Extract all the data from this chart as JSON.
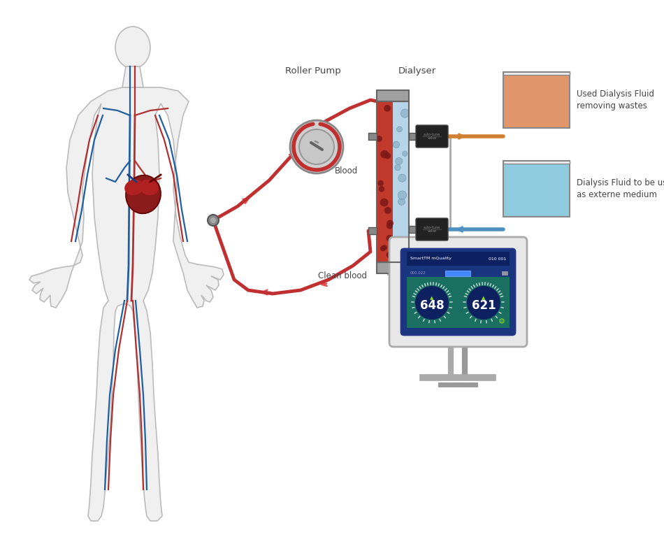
{
  "bg_color": "#ffffff",
  "body_fill": "#f0f0f0",
  "body_edge": "#bbbbbb",
  "artery_color": "#b03030",
  "vein_color": "#2060a0",
  "heart_color": "#8b1a1a",
  "roller_pump_label": "Roller Pump",
  "dialyser_label": "Dialyser",
  "blood_label": "Blood",
  "clean_blood_label": "Clean blood",
  "used_fluid_label": "Used Dialysis Fluid\nremoving wastes",
  "fresh_fluid_label": "Dialysis Fluid to be used\nas externe medium",
  "display_val1": "648",
  "display_val2": "621",
  "dialyser_red": "#c0392b",
  "dialyser_blue": "#b8d4e8",
  "dialyser_gray": "#909090",
  "orange_fluid": "#e0956a",
  "cyan_fluid": "#90cce0",
  "display_bg": "#1a3580",
  "display_screen_bg": "#1a7060",
  "machine_bg": "#e8e8e8",
  "machine_border": "#aaaaaa",
  "valve_color": "#222222",
  "tube_red": "#c03030",
  "tube_orange": "#d08030",
  "tube_cyan": "#5090c0",
  "label_color": "#444444"
}
